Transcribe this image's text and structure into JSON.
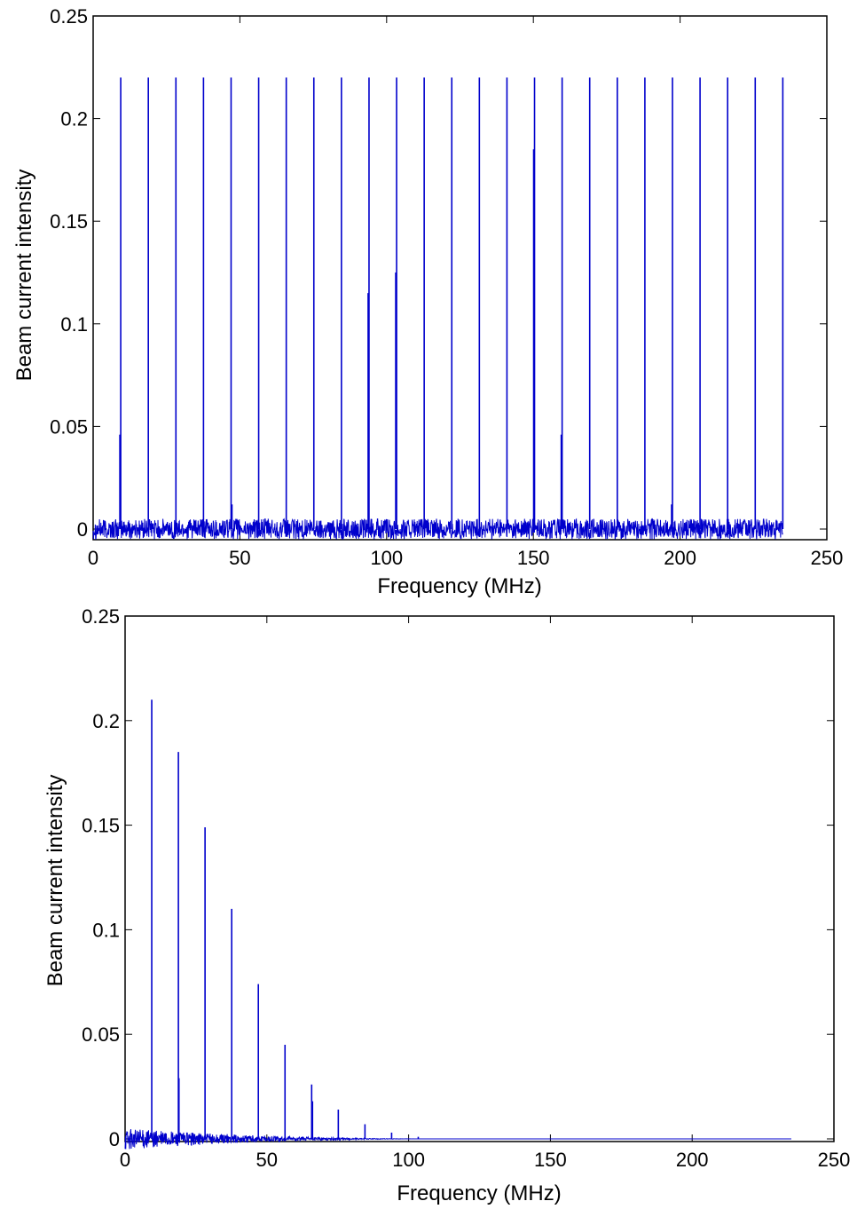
{
  "chart_data": [
    {
      "type": "line",
      "xlabel": "Frequency (MHz)",
      "ylabel": "Beam current intensity",
      "xlim": [
        0,
        250
      ],
      "ylim": [
        0,
        0.25
      ],
      "xticks": [
        0,
        50,
        100,
        150,
        200,
        250
      ],
      "yticks": [
        0,
        0.05,
        0.1,
        0.15,
        0.2,
        0.25
      ],
      "xtick_labels": [
        "0",
        "50",
        "100",
        "150",
        "200",
        "250"
      ],
      "ytick_labels": [
        "0",
        "0.05",
        "0.1",
        "0.15",
        "0.2",
        "0.25"
      ],
      "grid": false,
      "line_color": "#0000cc",
      "data_extent_x": 235,
      "noise_floor_amplitude": 0.005,
      "series": [
        {
          "peaks": [
            {
              "x": 9.4,
              "y": 0.22
            },
            {
              "x": 9.1,
              "y": 0.046
            },
            {
              "x": 18.8,
              "y": 0.22
            },
            {
              "x": 28.2,
              "y": 0.22
            },
            {
              "x": 37.6,
              "y": 0.22
            },
            {
              "x": 47.0,
              "y": 0.22
            },
            {
              "x": 47.3,
              "y": 0.012
            },
            {
              "x": 56.4,
              "y": 0.22
            },
            {
              "x": 65.8,
              "y": 0.22
            },
            {
              "x": 75.2,
              "y": 0.22
            },
            {
              "x": 84.6,
              "y": 0.22
            },
            {
              "x": 94.0,
              "y": 0.22
            },
            {
              "x": 93.7,
              "y": 0.115
            },
            {
              "x": 103.4,
              "y": 0.22
            },
            {
              "x": 103.1,
              "y": 0.125
            },
            {
              "x": 112.8,
              "y": 0.22
            },
            {
              "x": 122.2,
              "y": 0.22
            },
            {
              "x": 131.6,
              "y": 0.22
            },
            {
              "x": 141.0,
              "y": 0.22
            },
            {
              "x": 150.4,
              "y": 0.22
            },
            {
              "x": 150.1,
              "y": 0.185
            },
            {
              "x": 159.8,
              "y": 0.22
            },
            {
              "x": 159.5,
              "y": 0.046
            },
            {
              "x": 169.2,
              "y": 0.22
            },
            {
              "x": 178.6,
              "y": 0.22
            },
            {
              "x": 188.0,
              "y": 0.22
            },
            {
              "x": 197.4,
              "y": 0.22
            },
            {
              "x": 197.1,
              "y": 0.012
            },
            {
              "x": 206.8,
              "y": 0.22
            },
            {
              "x": 216.2,
              "y": 0.22
            },
            {
              "x": 225.6,
              "y": 0.22
            },
            {
              "x": 235.0,
              "y": 0.22
            }
          ]
        }
      ]
    },
    {
      "type": "line",
      "xlabel": "Frequency (MHz)",
      "ylabel": "Beam current intensity",
      "xlim": [
        0,
        250
      ],
      "ylim": [
        0,
        0.25
      ],
      "xticks": [
        0,
        50,
        100,
        150,
        200,
        250
      ],
      "yticks": [
        0,
        0.05,
        0.1,
        0.15,
        0.2,
        0.25
      ],
      "xtick_labels": [
        "0",
        "50",
        "100",
        "150",
        "200",
        "250"
      ],
      "ytick_labels": [
        "0",
        "0.05",
        "0.1",
        "0.15",
        "0.2",
        "0.25"
      ],
      "grid": false,
      "line_color": "#0000cc",
      "data_extent_x": 235,
      "noise_floor_amplitude": 0.005,
      "noise_decay_to_x": 110,
      "series": [
        {
          "peaks": [
            {
              "x": 9.4,
              "y": 0.21
            },
            {
              "x": 18.8,
              "y": 0.185
            },
            {
              "x": 19.0,
              "y": 0.029
            },
            {
              "x": 28.2,
              "y": 0.149
            },
            {
              "x": 37.6,
              "y": 0.11
            },
            {
              "x": 47.0,
              "y": 0.074
            },
            {
              "x": 56.4,
              "y": 0.045
            },
            {
              "x": 65.8,
              "y": 0.026
            },
            {
              "x": 66.1,
              "y": 0.018
            },
            {
              "x": 75.2,
              "y": 0.014
            },
            {
              "x": 84.6,
              "y": 0.007
            },
            {
              "x": 94.0,
              "y": 0.003
            },
            {
              "x": 103.4,
              "y": 0.001
            }
          ]
        }
      ]
    }
  ]
}
